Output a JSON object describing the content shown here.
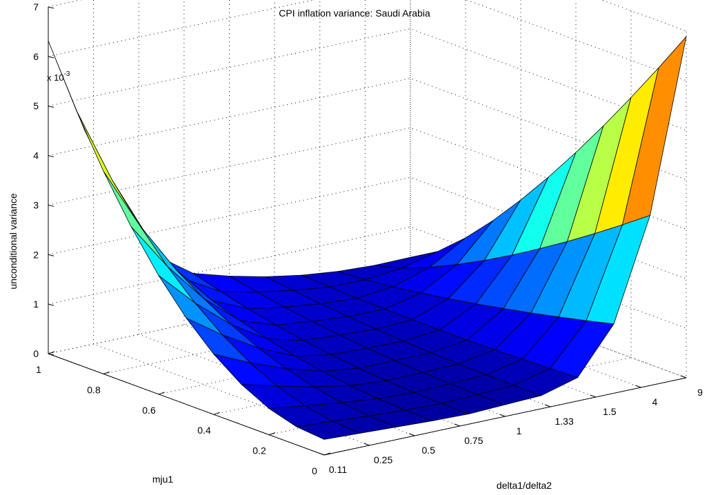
{
  "chart_data": {
    "type": "surface",
    "title": "CPI inflation variance: Saudi Arabia",
    "zlabel": "unconditional variance",
    "xlabel": "mju1",
    "ylabel": "delta1/delta2",
    "zlim": [
      0,
      0.007
    ],
    "z_multiplier_label": "x 10",
    "z_multiplier_exponent": "-3",
    "x_ticks": [
      "0",
      "0.2",
      "0.4",
      "0.6",
      "0.8",
      "1"
    ],
    "y_ticks": [
      "0.11",
      "0.25",
      "0.5",
      "0.75",
      "1",
      "1.33",
      "1.5",
      "4",
      "9"
    ],
    "z_ticks": [
      "0",
      "1",
      "2",
      "3",
      "4",
      "5",
      "6",
      "7"
    ],
    "grid": true,
    "colormap": "jet"
  }
}
